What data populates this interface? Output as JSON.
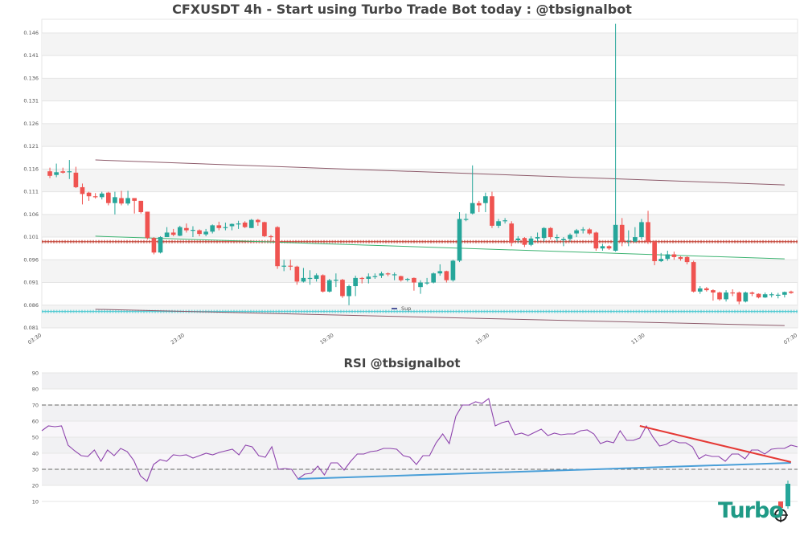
{
  "header": {
    "title": "CFXUSDT 4h - Start using Turbo Trade Bot today : @tbsignalbot"
  },
  "rsi_panel": {
    "title": "RSI @tbsignalbot"
  },
  "logo": {
    "text": "Turbo"
  },
  "colors": {
    "up": "#26a69a",
    "down": "#ef5350",
    "rsi": "#8e44ad",
    "resistance": "#c0392b",
    "support": "#48c9d0",
    "channel": "#8d5a6a",
    "trend_green": "#3cb371",
    "rsi_red": "#e53935",
    "rsi_blue": "#4a9fd8"
  },
  "chart_data": [
    {
      "type": "candlestick",
      "title": "CFXUSDT 4h - Start using Turbo Trade Bot today : @tbsignalbot",
      "ylim": [
        0.081,
        0.149
      ],
      "y_ticks": [
        "0.146",
        "0.141",
        "0.136",
        "0.131",
        "0.126",
        "0.121",
        "0.116",
        "0.111",
        "0.106",
        "0.101",
        "0.096",
        "0.091",
        "0.086",
        "0.081"
      ],
      "x_ticks": [
        "03:30",
        "23:30",
        "19:30",
        "15:30",
        "11:30",
        "07:30"
      ],
      "legend": [
        "Sup"
      ],
      "horizontal_levels": {
        "resistance": 0.1,
        "support": 0.0846
      },
      "candles": [
        [
          0.1155,
          0.1145,
          0.1163,
          0.114
        ],
        [
          0.1147,
          0.1153,
          0.1172,
          0.1142
        ],
        [
          0.1155,
          0.1152,
          0.1163,
          0.115
        ],
        [
          0.1155,
          0.1155,
          0.118,
          0.1138
        ],
        [
          0.1152,
          0.112,
          0.1165,
          0.1118
        ],
        [
          0.112,
          0.1105,
          0.1128,
          0.1082
        ],
        [
          0.1108,
          0.11,
          0.111,
          0.109
        ],
        [
          0.11,
          0.1098,
          0.1107,
          0.1095
        ],
        [
          0.1098,
          0.1106,
          0.111,
          0.1093
        ],
        [
          0.1108,
          0.1085,
          0.111,
          0.108
        ],
        [
          0.1085,
          0.1098,
          0.111,
          0.106
        ],
        [
          0.1096,
          0.1084,
          0.1112,
          0.108
        ],
        [
          0.1084,
          0.1096,
          0.1112,
          0.108
        ],
        [
          0.1096,
          0.109,
          0.1096,
          0.1062
        ],
        [
          0.109,
          0.1065,
          0.109,
          0.1062
        ],
        [
          0.1066,
          0.1008,
          0.1066,
          0.1005
        ],
        [
          0.1008,
          0.0976,
          0.101,
          0.0972
        ],
        [
          0.0976,
          0.101,
          0.1012,
          0.0974
        ],
        [
          0.101,
          0.102,
          0.1032,
          0.1015
        ],
        [
          0.102,
          0.1015,
          0.1028,
          0.1012
        ],
        [
          0.1013,
          0.1032,
          0.1035,
          0.1012
        ],
        [
          0.103,
          0.1025,
          0.104,
          0.102
        ],
        [
          0.1026,
          0.1026,
          0.1034,
          0.101
        ],
        [
          0.1025,
          0.1017,
          0.1027,
          0.1012
        ],
        [
          0.1016,
          0.1022,
          0.1028,
          0.1012
        ],
        [
          0.1022,
          0.1036,
          0.1038,
          0.1018
        ],
        [
          0.1036,
          0.103,
          0.1044,
          0.1025
        ],
        [
          0.1032,
          0.1032,
          0.1042,
          0.1025
        ],
        [
          0.1034,
          0.1039,
          0.104,
          0.1025
        ],
        [
          0.104,
          0.104,
          0.1046,
          0.1028
        ],
        [
          0.1042,
          0.1032,
          0.1045,
          0.103
        ],
        [
          0.103,
          0.1048,
          0.105,
          0.103
        ],
        [
          0.1048,
          0.1043,
          0.105,
          0.1035
        ],
        [
          0.1043,
          0.1012,
          0.1044,
          0.101
        ],
        [
          0.1012,
          0.101,
          0.1015,
          0.1
        ],
        [
          0.1032,
          0.0946,
          0.1034,
          0.094
        ],
        [
          0.0946,
          0.0947,
          0.096,
          0.0935
        ],
        [
          0.0947,
          0.0945,
          0.096,
          0.0937
        ],
        [
          0.0945,
          0.0912,
          0.0947,
          0.0905
        ],
        [
          0.0912,
          0.092,
          0.0942,
          0.091
        ],
        [
          0.0919,
          0.092,
          0.0937,
          0.0905
        ],
        [
          0.0918,
          0.0926,
          0.093,
          0.0912
        ],
        [
          0.0926,
          0.089,
          0.0928,
          0.0888
        ],
        [
          0.089,
          0.0915,
          0.0918,
          0.0888
        ],
        [
          0.0915,
          0.0916,
          0.093,
          0.09
        ],
        [
          0.0916,
          0.088,
          0.0918,
          0.0876
        ],
        [
          0.088,
          0.0902,
          0.0905,
          0.086
        ],
        [
          0.0902,
          0.092,
          0.0925,
          0.088
        ],
        [
          0.092,
          0.0918,
          0.0922,
          0.0908
        ],
        [
          0.0918,
          0.0923,
          0.093,
          0.0908
        ],
        [
          0.0922,
          0.0924,
          0.093,
          0.0918
        ],
        [
          0.0925,
          0.093,
          0.0934,
          0.092
        ],
        [
          0.093,
          0.0928,
          0.0932,
          0.0924
        ],
        [
          0.0928,
          0.0928,
          0.0932,
          0.0915
        ],
        [
          0.0924,
          0.0915,
          0.0925,
          0.0912
        ],
        [
          0.0916,
          0.0918,
          0.092,
          0.0912
        ],
        [
          0.092,
          0.091,
          0.0921,
          0.0892
        ],
        [
          0.09,
          0.091,
          0.0915,
          0.0885
        ],
        [
          0.091,
          0.091,
          0.092,
          0.0905
        ],
        [
          0.091,
          0.093,
          0.0932,
          0.0908
        ],
        [
          0.093,
          0.0935,
          0.095,
          0.0925
        ],
        [
          0.0935,
          0.0915,
          0.0936,
          0.091
        ],
        [
          0.0915,
          0.0958,
          0.096,
          0.0912
        ],
        [
          0.0958,
          0.105,
          0.1065,
          0.0955
        ],
        [
          0.105,
          0.105,
          0.1062,
          0.1045
        ],
        [
          0.1062,
          0.1085,
          0.1168,
          0.106
        ],
        [
          0.1085,
          0.108,
          0.109,
          0.1065
        ],
        [
          0.1085,
          0.11,
          0.1108,
          0.1065
        ],
        [
          0.11,
          0.1035,
          0.111,
          0.103
        ],
        [
          0.1035,
          0.1045,
          0.105,
          0.103
        ],
        [
          0.1045,
          0.1047,
          0.1052,
          0.104
        ],
        [
          0.104,
          0.0998,
          0.1045,
          0.099
        ],
        [
          0.1003,
          0.1007,
          0.1012,
          0.0997
        ],
        [
          0.1008,
          0.0993,
          0.101,
          0.0988
        ],
        [
          0.0993,
          0.1007,
          0.1012,
          0.099
        ],
        [
          0.1007,
          0.101,
          0.102,
          0.1
        ],
        [
          0.1008,
          0.103,
          0.1032,
          0.1
        ],
        [
          0.103,
          0.101,
          0.1032,
          0.1005
        ],
        [
          0.1008,
          0.101,
          0.1016,
          0.1
        ],
        [
          0.1003,
          0.1006,
          0.101,
          0.099
        ],
        [
          0.1006,
          0.1015,
          0.1018,
          0.1
        ],
        [
          0.1018,
          0.1025,
          0.1028,
          0.101
        ],
        [
          0.1025,
          0.1027,
          0.1032,
          0.1018
        ],
        [
          0.1027,
          0.1018,
          0.103,
          0.1015
        ],
        [
          0.102,
          0.0985,
          0.1022,
          0.098
        ],
        [
          0.0985,
          0.099,
          0.0995,
          0.098
        ],
        [
          0.099,
          0.0985,
          0.0992,
          0.0982
        ],
        [
          0.098,
          0.1037,
          0.148,
          0.0978
        ],
        [
          0.1037,
          0.1,
          0.1052,
          0.099
        ],
        [
          0.1,
          0.1002,
          0.1025,
          0.099
        ],
        [
          0.1,
          0.101,
          0.1032,
          0.0998
        ],
        [
          0.101,
          0.1043,
          0.105,
          0.1005
        ],
        [
          0.1043,
          0.1,
          0.1068,
          0.0995
        ],
        [
          0.1,
          0.0957,
          0.1002,
          0.0948
        ],
        [
          0.0957,
          0.0962,
          0.0975,
          0.0955
        ],
        [
          0.0962,
          0.0972,
          0.098,
          0.0958
        ],
        [
          0.0972,
          0.0966,
          0.0978,
          0.096
        ],
        [
          0.0966,
          0.0962,
          0.0968,
          0.0958
        ],
        [
          0.0966,
          0.0955,
          0.0968,
          0.095
        ],
        [
          0.0955,
          0.089,
          0.0958,
          0.0888
        ],
        [
          0.089,
          0.0897,
          0.0902,
          0.0885
        ],
        [
          0.0897,
          0.0893,
          0.09,
          0.089
        ],
        [
          0.0893,
          0.0888,
          0.0895,
          0.087
        ],
        [
          0.0888,
          0.0873,
          0.089,
          0.087
        ],
        [
          0.0873,
          0.0888,
          0.0893,
          0.0868
        ],
        [
          0.0888,
          0.0887,
          0.0895,
          0.088
        ],
        [
          0.0888,
          0.0868,
          0.089,
          0.0862
        ],
        [
          0.0868,
          0.0888,
          0.089,
          0.0866
        ],
        [
          0.0888,
          0.0885,
          0.089,
          0.088
        ],
        [
          0.0885,
          0.0877,
          0.0886,
          0.0875
        ],
        [
          0.0877,
          0.0884,
          0.0888,
          0.0876
        ],
        [
          0.0882,
          0.0884,
          0.0888,
          0.0877
        ],
        [
          0.0882,
          0.0883,
          0.0887,
          0.0875
        ],
        [
          0.0883,
          0.0889,
          0.089,
          0.0877
        ],
        [
          0.089,
          0.0887,
          0.0892,
          0.0885
        ]
      ],
      "trendlines": [
        {
          "name": "upper-channel",
          "from": [
            7,
            0.118
          ],
          "to": [
            113,
            0.1125
          ],
          "color": "#8d5a6a"
        },
        {
          "name": "lower-channel",
          "from": [
            7,
            0.0851
          ],
          "to": [
            113,
            0.0815
          ],
          "color": "#8d5a6a"
        },
        {
          "name": "green-trend",
          "from": [
            7,
            0.1012
          ],
          "to": [
            113,
            0.0962
          ],
          "color": "#3cb371"
        }
      ]
    },
    {
      "type": "line",
      "title": "RSI @tbsignalbot",
      "ylim": [
        8,
        92
      ],
      "y_ticks": [
        90,
        80,
        70,
        60,
        50,
        40,
        30,
        20,
        10
      ],
      "reference_lines": [
        70,
        30
      ],
      "values": [
        54,
        57,
        56.5,
        57,
        45,
        41.5,
        38.5,
        38,
        42,
        35,
        42,
        38.5,
        43,
        41,
        35.5,
        26,
        22.5,
        33,
        36,
        35,
        39,
        38.5,
        39,
        37,
        38.5,
        40,
        39,
        40.5,
        41.5,
        42.5,
        39,
        45,
        44,
        38.5,
        37.5,
        44,
        30,
        30.5,
        30,
        24,
        27,
        27.5,
        32,
        26.5,
        34,
        34,
        29.5,
        35,
        39.5,
        39.5,
        41,
        41.5,
        43,
        43,
        42.5,
        38.5,
        37.5,
        33,
        38.5,
        38.5,
        46.5,
        52,
        46,
        63,
        70,
        70,
        72,
        71,
        74,
        57,
        59,
        60,
        51.5,
        52.5,
        51,
        53,
        55,
        51,
        52.5,
        51.5,
        52,
        52,
        54,
        54.5,
        52,
        46,
        47.5,
        46.5,
        54,
        48,
        48,
        49.5,
        57,
        50,
        44.5,
        45.5,
        48,
        46.5,
        46.5,
        44,
        36.5,
        39,
        38,
        38,
        35,
        39.5,
        39.5,
        36.5,
        42,
        42,
        39.5,
        42.5,
        43,
        43,
        45,
        44
      ],
      "trendlines": [
        {
          "name": "rsi-support",
          "from": [
            39,
            24
          ],
          "to": [
            114,
            34
          ],
          "color": "#4a9fd8"
        },
        {
          "name": "rsi-resistance",
          "from": [
            91,
            57
          ],
          "to": [
            114,
            34.5
          ],
          "color": "#e53935"
        }
      ]
    }
  ]
}
